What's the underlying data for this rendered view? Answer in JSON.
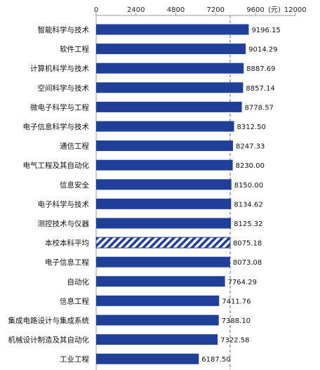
{
  "chart_data": {
    "type": "bar",
    "orientation": "horizontal",
    "title": "",
    "xlabel": "",
    "ylabel": "",
    "unit_label": "(元)",
    "xlim": [
      0,
      12000
    ],
    "xticks": [
      0,
      2400,
      4800,
      7200,
      9600,
      12000
    ],
    "reference_line": {
      "value": 8075.18,
      "style": "dashed",
      "color": "#6f7fa8"
    },
    "bar_color": "#1f3f99",
    "highlight_pattern": "diagonal-hatch",
    "categories": [
      "智能科学与技术",
      "软件工程",
      "计算机科学与技术",
      "空间科学与技术",
      "微电子科学与工程",
      "电子信息科学与技术",
      "通信工程",
      "电气工程及其自动化",
      "信息安全",
      "电子科学与技术",
      "测控技术与仪器",
      "本校本科平均",
      "电子信息工程",
      "自动化",
      "信息工程",
      "集成电路设计与集成系统",
      "机械设计制造及其自动化",
      "工业工程"
    ],
    "values": [
      9196.15,
      9014.29,
      8887.69,
      8857.14,
      8778.57,
      8312.5,
      8247.33,
      8230.0,
      8150.0,
      8134.62,
      8125.32,
      8075.18,
      8073.08,
      7764.29,
      7411.76,
      7388.1,
      7322.58,
      6187.5
    ],
    "value_labels": [
      "9196.15",
      "9014.29",
      "8887.69",
      "8857.14",
      "8778.57",
      "8312.50",
      "8247.33",
      "8230.00",
      "8150.00",
      "8134.62",
      "8125.32",
      "8075.18",
      "8073.08",
      "7764.29",
      "7411.76",
      "7388.10",
      "7322.58",
      "6187.50"
    ],
    "highlight_index": 11,
    "grid": false,
    "legend": "none"
  }
}
